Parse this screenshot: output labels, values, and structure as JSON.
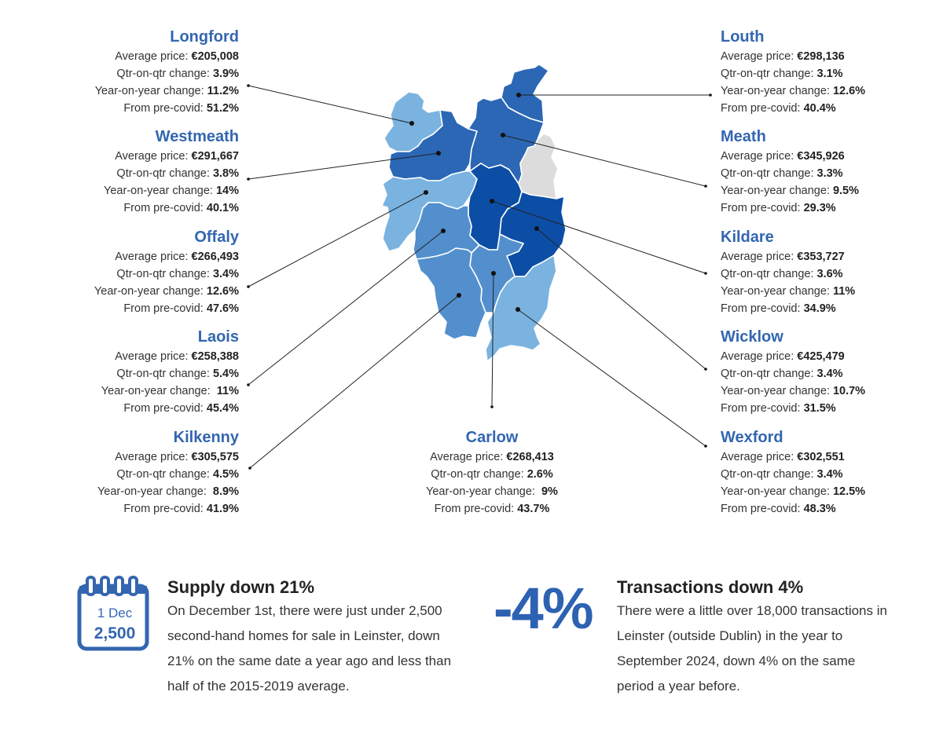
{
  "labels": {
    "avg": "Average price:",
    "qtr": "Qtr-on-qtr change:",
    "yoy": "Year-on-year change:",
    "pre": "From pre-covid:"
  },
  "counties": [
    {
      "id": "longford",
      "name": "Longford",
      "avg": "€205,008",
      "qtr": "3.9%",
      "yoy": "11.2%",
      "pre": "51.2%",
      "color": "#7ab3e0"
    },
    {
      "id": "westmeath",
      "name": "Westmeath",
      "avg": "€291,667",
      "qtr": "3.8%",
      "yoy": "14%",
      "pre": "40.1%",
      "color": "#2b67b5"
    },
    {
      "id": "offaly",
      "name": "Offaly",
      "avg": "€266,493",
      "qtr": "3.4%",
      "yoy": "12.6%",
      "pre": "47.6%",
      "color": "#7ab3e0"
    },
    {
      "id": "laois",
      "name": "Laois",
      "avg": "€258,388",
      "qtr": "5.4%",
      "yoy": " 11%",
      "pre": "45.4%",
      "color": "#538fcd"
    },
    {
      "id": "kilkenny",
      "name": "Kilkenny",
      "avg": "€305,575",
      "qtr": "4.5%",
      "yoy": " 8.9%",
      "pre": "41.9%",
      "color": "#538fcd"
    },
    {
      "id": "carlow",
      "name": "Carlow",
      "avg": "€268,413",
      "qtr": "2.6%",
      "yoy": " 9%",
      "pre": "43.7%",
      "color": "#538fcd"
    },
    {
      "id": "louth",
      "name": "Louth",
      "avg": "€298,136",
      "qtr": "3.1%",
      "yoy": "12.6%",
      "pre": "40.4%",
      "color": "#2b67b5"
    },
    {
      "id": "meath",
      "name": "Meath",
      "avg": "€345,926",
      "qtr": "3.3%",
      "yoy": "9.5%",
      "pre": "29.3%",
      "color": "#2b67b5"
    },
    {
      "id": "kildare",
      "name": "Kildare",
      "avg": "€353,727",
      "qtr": "3.6%",
      "yoy": "11%",
      "pre": "34.9%",
      "color": "#0c4ea6"
    },
    {
      "id": "wicklow",
      "name": "Wicklow",
      "avg": "€425,479",
      "qtr": "3.4%",
      "yoy": "10.7%",
      "pre": "31.5%",
      "color": "#0c4ea6"
    },
    {
      "id": "wexford",
      "name": "Wexford",
      "avg": "€302,551",
      "qtr": "3.4%",
      "yoy": "12.5%",
      "pre": "48.3%",
      "color": "#7ab3e0"
    }
  ],
  "dublin_color": "#dcdcdc",
  "supply": {
    "title": "Supply down 21%",
    "text": "On December 1st, there were just under 2,500 second-hand homes for sale in Leinster, down 21% on the same date a year ago and less than half of the 2015-2019 average.",
    "calendar_day": "1 Dec",
    "calendar_value": "2,500",
    "calendar_icon": "calendar-icon"
  },
  "transactions": {
    "title": "Transactions down 4%",
    "big": "-4%",
    "text": "There were a little over 18,000 transactions in Leinster (outside Dublin) in the year to September 2024, down 4% on the same period a year before."
  },
  "accent_color": "#3366b0"
}
